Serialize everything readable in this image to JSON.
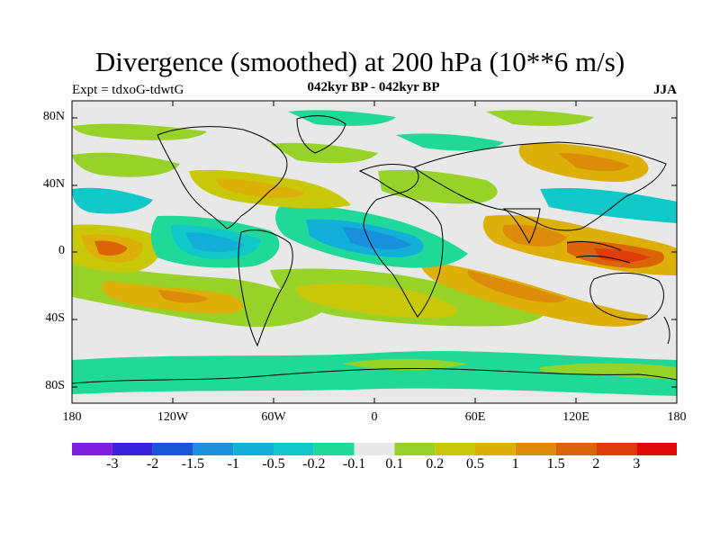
{
  "title": "Divergence (smoothed) at 200 hPa (10**6 m/s)",
  "experiment": "Expt = tdxoG-tdwtG",
  "period": "042kyr BP - 042kyr BP",
  "season": "JJA",
  "lat_labels": [
    "80N",
    "40N",
    "0",
    "40S",
    "80S"
  ],
  "lon_labels": [
    "180",
    "120W",
    "60W",
    "0",
    "60E",
    "120E",
    "180"
  ],
  "colorbar": {
    "labels": [
      "-3",
      "-2",
      "-1.5",
      "-1",
      "-0.5",
      "-0.2",
      "-0.1",
      "0.1",
      "0.2",
      "0.5",
      "1",
      "1.5",
      "2",
      "3"
    ],
    "colors": [
      "#7f1fe0",
      "#3a22dc",
      "#1a56d8",
      "#1890dc",
      "#12b0d8",
      "#10c8c8",
      "#20d898",
      "#e8e8e8",
      "#96d228",
      "#c8c808",
      "#dcb008",
      "#dc8c08",
      "#dc6408",
      "#e03c08",
      "#e00a0a"
    ]
  },
  "colors": {
    "background": "#e8e8e8",
    "coast": "#000000"
  }
}
